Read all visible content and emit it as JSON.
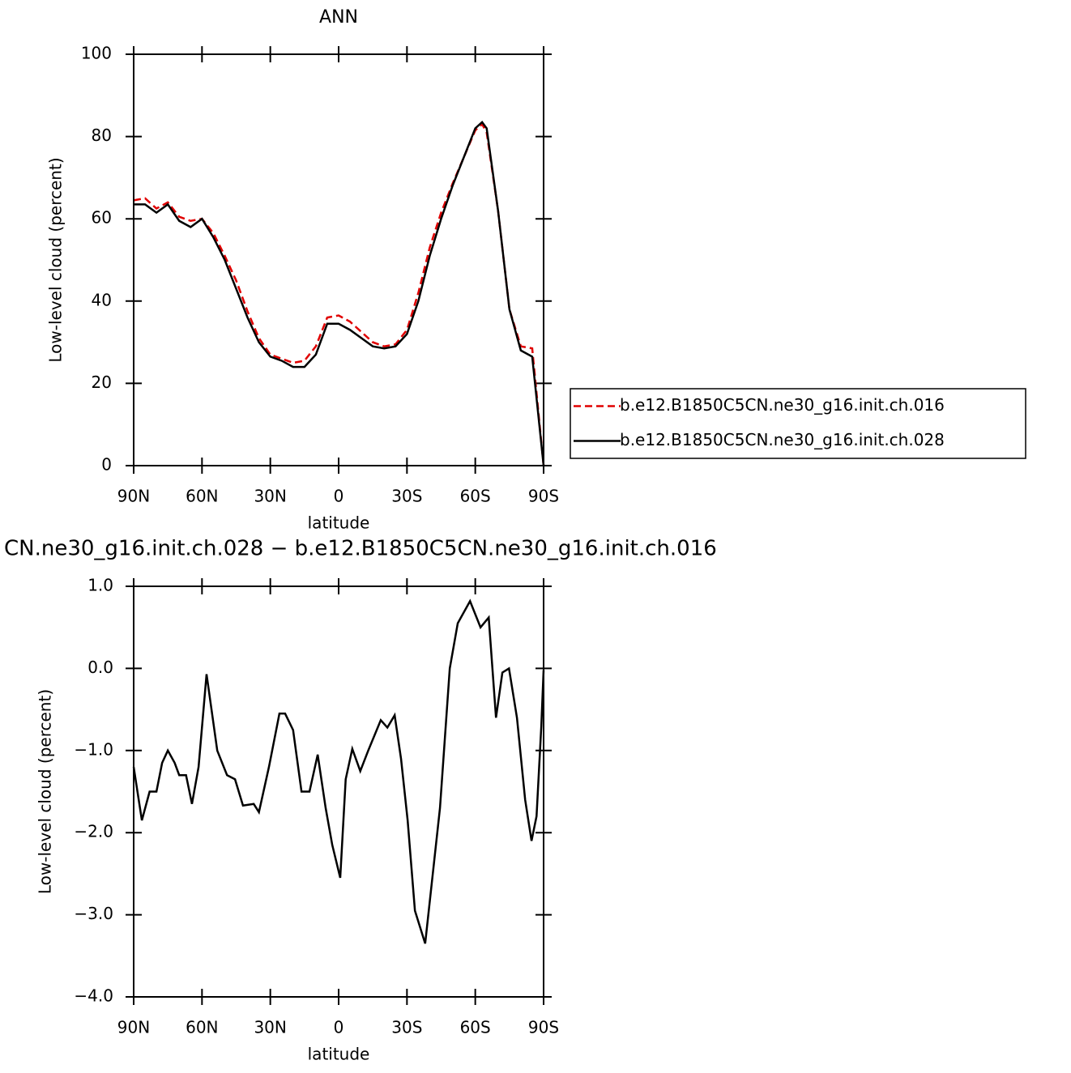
{
  "chart_data": [
    {
      "type": "line",
      "title": "ANN",
      "xlabel": "latitude",
      "ylabel": "Low-level cloud (percent)",
      "x": [
        90,
        85,
        80,
        75,
        70,
        65,
        60,
        55,
        50,
        45,
        40,
        35,
        30,
        25,
        20,
        15,
        10,
        5,
        0,
        -5,
        -10,
        -15,
        -20,
        -25,
        -30,
        -35,
        -40,
        -45,
        -50,
        -55,
        -60,
        -63,
        -65,
        -70,
        -75,
        -80,
        -85,
        -90
      ],
      "xlim": [
        90,
        -90
      ],
      "xticks": [
        {
          "value": 90,
          "label": "90N"
        },
        {
          "value": 60,
          "label": "60N"
        },
        {
          "value": 30,
          "label": "30N"
        },
        0,
        {
          "value": -30,
          "label": "30S"
        },
        {
          "value": -60,
          "label": "60S"
        },
        {
          "value": -90,
          "label": "90S"
        }
      ],
      "ylim": [
        0,
        100
      ],
      "yticks": [
        0,
        20,
        40,
        60,
        80,
        100
      ],
      "legend": "right",
      "series": [
        {
          "name": "b.e12.B1850C5CN.ne30_g16.init.ch.016",
          "color": "#e00000",
          "linestyle": "dashed",
          "values": [
            64.5,
            65,
            62.5,
            64,
            60.5,
            59.5,
            60,
            56.5,
            51,
            45,
            37.5,
            31,
            27,
            26,
            25,
            25.5,
            29,
            36,
            36.5,
            35,
            32.5,
            30,
            29,
            29.5,
            33,
            42,
            53,
            61.5,
            68.5,
            75,
            81.5,
            83,
            81,
            62,
            38,
            29,
            28.5,
            0
          ]
        },
        {
          "name": "b.e12.B1850C5CN.ne30_g16.init.ch.028",
          "color": "#000000",
          "linestyle": "solid",
          "values": [
            63.5,
            63.5,
            61.5,
            63.5,
            59.5,
            58,
            60,
            55.5,
            50,
            43,
            36,
            30,
            26.5,
            25.5,
            24,
            24,
            27,
            34.5,
            34.5,
            33,
            31,
            29,
            28.5,
            29,
            32,
            40,
            51,
            60,
            68,
            75,
            82,
            83.5,
            82,
            62,
            38,
            28,
            26.5,
            0
          ]
        }
      ]
    },
    {
      "type": "line",
      "title": "CN.ne30_g16.init.ch.028 − b.e12.B1850C5CN.ne30_g16.init.ch.016",
      "xlabel": "latitude",
      "ylabel": "Low-level cloud (percent)",
      "x": [
        90,
        86.4,
        83,
        80,
        77.5,
        75,
        72,
        70,
        67,
        64.4,
        61.5,
        58,
        53.3,
        49,
        45.5,
        42,
        37.3,
        35,
        30.6,
        26,
        23.5,
        20,
        16.3,
        12.8,
        9.2,
        5.7,
        2.8,
        -0.7,
        -3.1,
        -6,
        -9.5,
        -13,
        -18.5,
        -21.4,
        -24.6,
        -27.4,
        -30.3,
        -33.5,
        -38,
        -44.5,
        -48.8,
        -52.3,
        -57.7,
        -62.3,
        -65.9,
        -69.1,
        -71.9,
        -74.8,
        -78.3,
        -81.9,
        -84.7,
        -86.9,
        -89,
        -90
      ],
      "xlim": [
        90,
        -90
      ],
      "xticks": [
        {
          "value": 90,
          "label": "90N"
        },
        {
          "value": 60,
          "label": "60N"
        },
        {
          "value": 30,
          "label": "30N"
        },
        0,
        {
          "value": -30,
          "label": "30S"
        },
        {
          "value": -60,
          "label": "60S"
        },
        {
          "value": -90,
          "label": "90S"
        }
      ],
      "ylim": [
        -4,
        1
      ],
      "yticks": [
        {
          "value": -4,
          "label": "−4.0"
        },
        {
          "value": -3,
          "label": "−3.0"
        },
        {
          "value": -2,
          "label": "−2.0"
        },
        {
          "value": -1,
          "label": "−1.0"
        },
        {
          "value": 0,
          "label": "0.0"
        },
        {
          "value": 1,
          "label": "1.0"
        }
      ],
      "series": [
        {
          "color": "#000000",
          "linestyle": "solid",
          "values": [
            -1.2,
            -1.85,
            -1.5,
            -1.5,
            -1.15,
            -1.0,
            -1.15,
            -1.3,
            -1.3,
            -1.65,
            -1.2,
            -0.07,
            -1.0,
            -1.3,
            -1.35,
            -1.67,
            -1.65,
            -1.75,
            -1.2,
            -0.55,
            -0.55,
            -0.75,
            -1.5,
            -1.5,
            -1.05,
            -1.7,
            -2.15,
            -2.55,
            -1.35,
            -0.98,
            -1.25,
            -1.0,
            -0.63,
            -0.72,
            -0.57,
            -1.1,
            -1.85,
            -2.95,
            -3.35,
            -1.7,
            0.0,
            0.55,
            0.82,
            0.5,
            0.62,
            -0.6,
            -0.05,
            0.0,
            -0.6,
            -1.6,
            -2.1,
            -1.8,
            -0.7,
            -0.02
          ]
        }
      ]
    }
  ]
}
